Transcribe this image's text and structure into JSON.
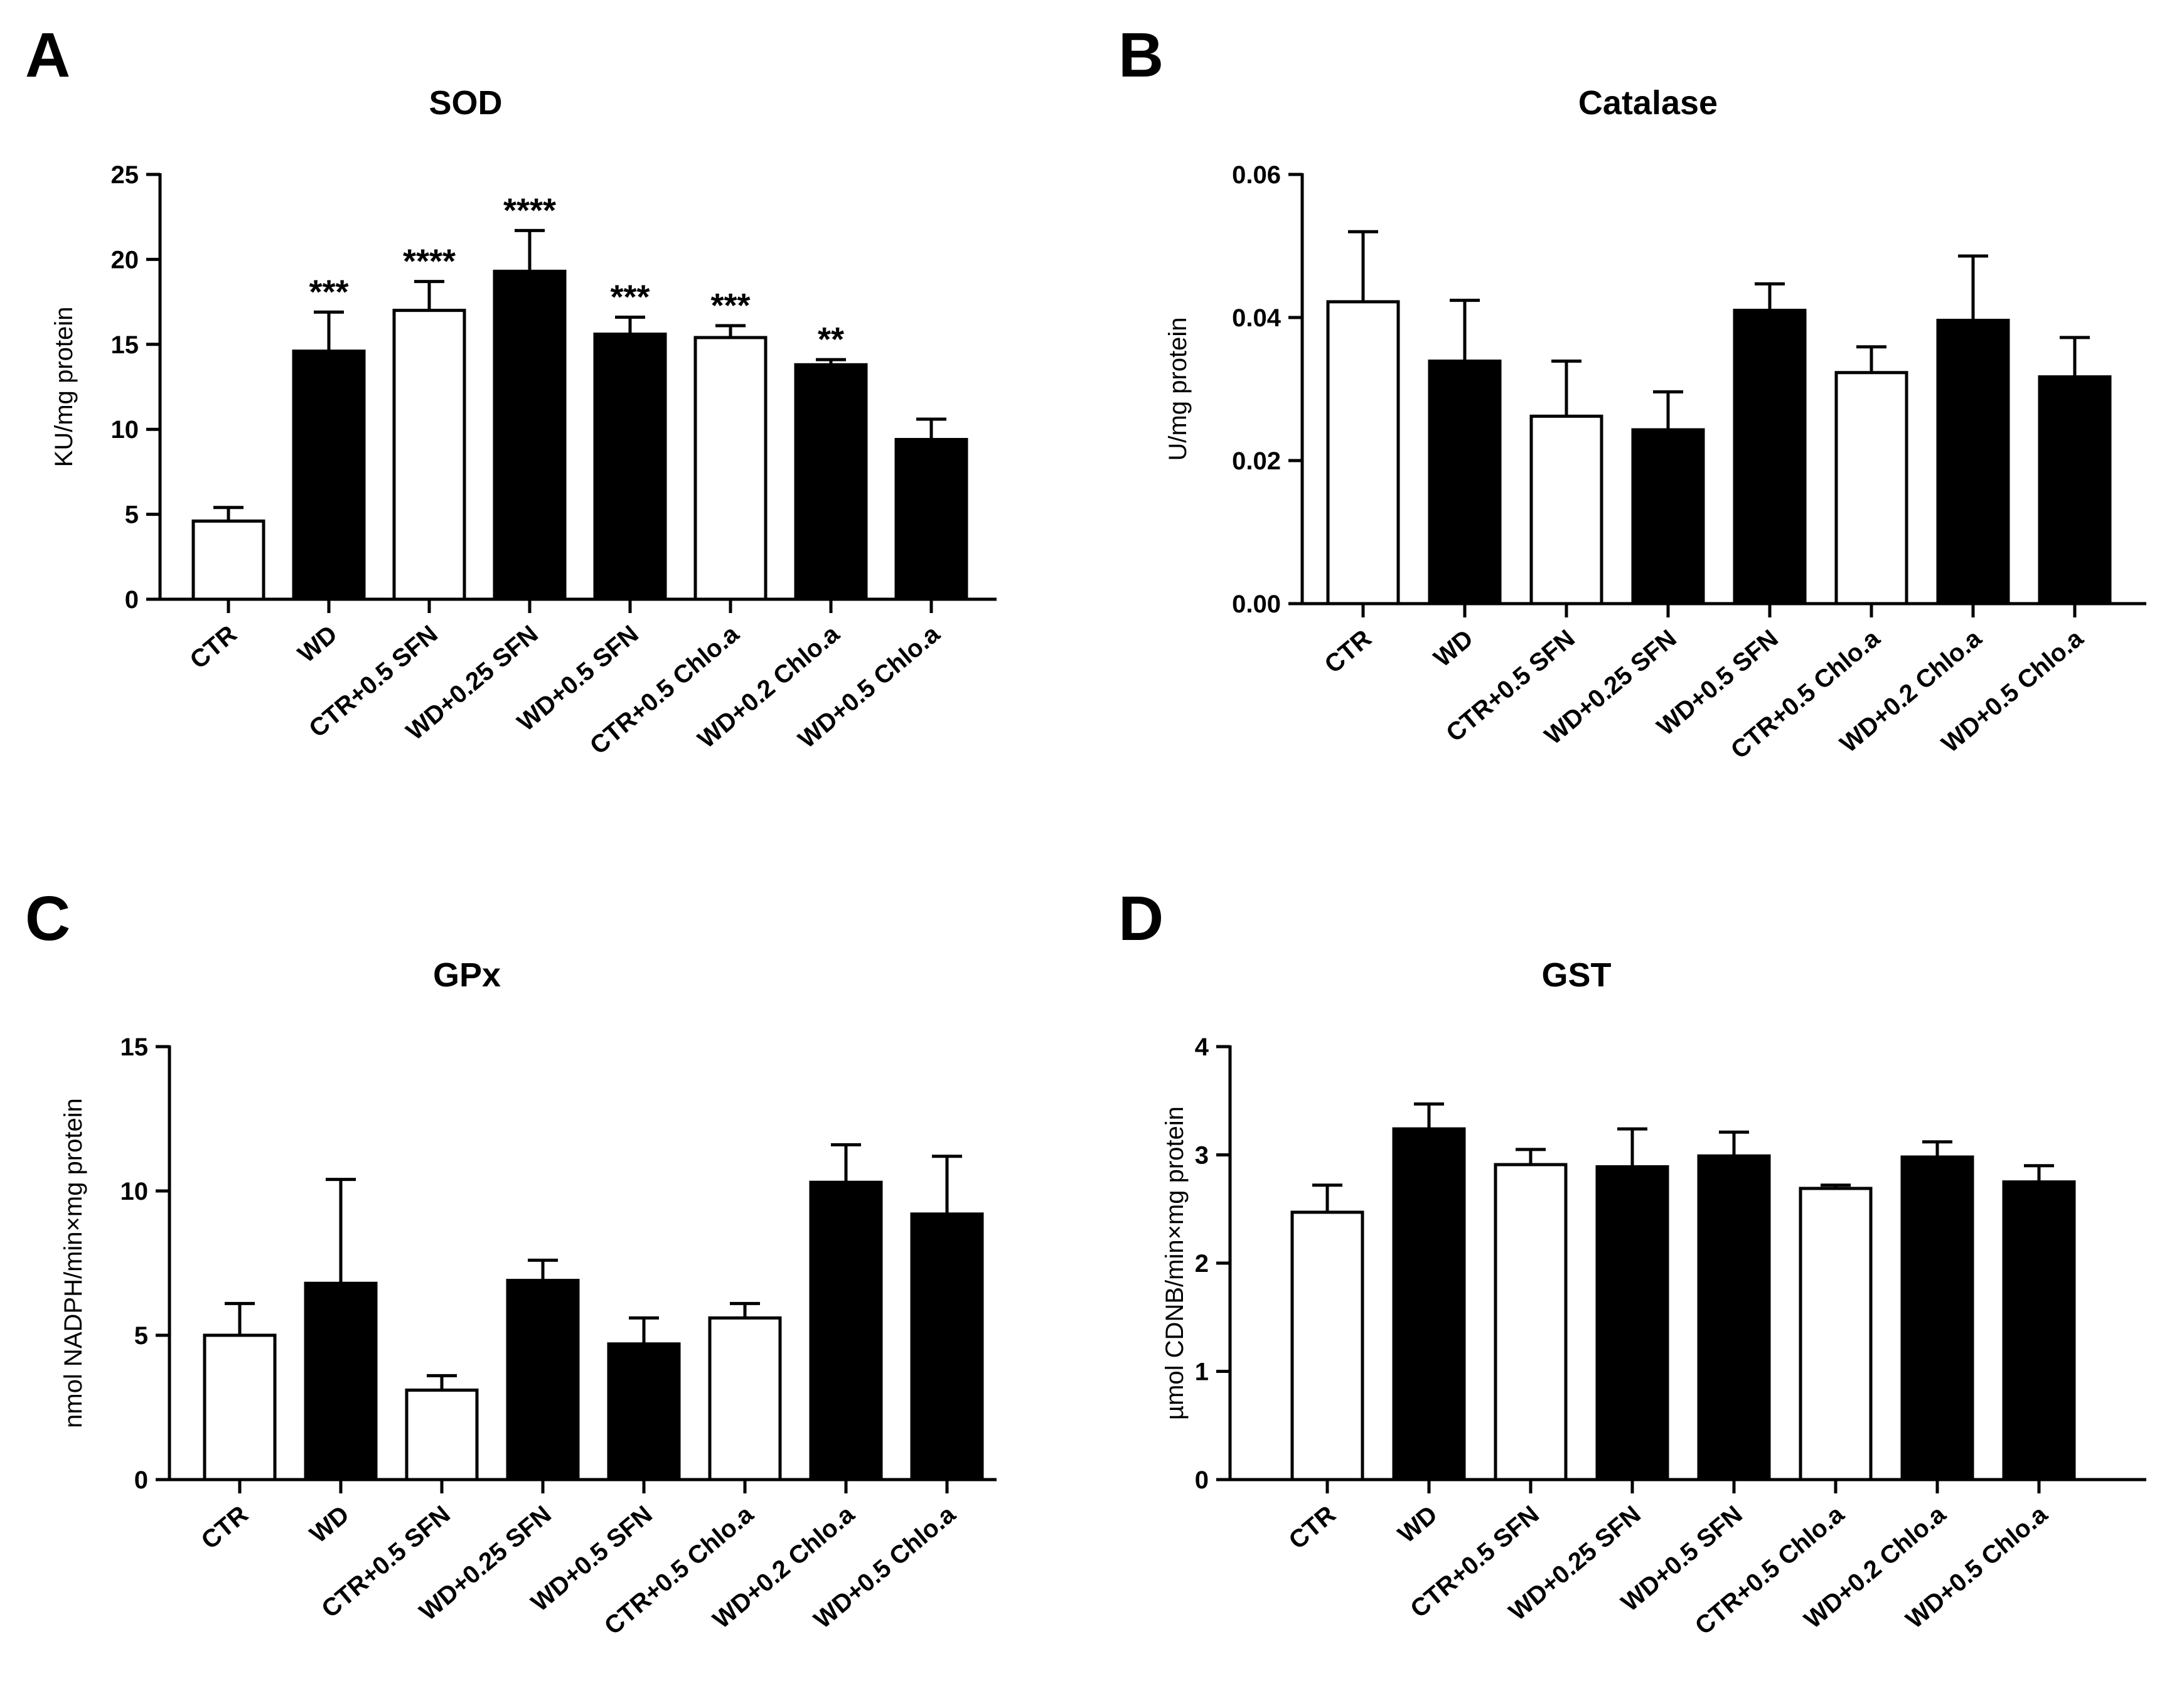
{
  "chart_data": [
    {
      "panel": "A",
      "type": "bar",
      "title": "SOD",
      "xlabel": "",
      "ylabel": "KU/mg protein",
      "ylim": [
        0,
        25
      ],
      "yticks": [
        "0",
        "5",
        "10",
        "15",
        "20",
        "25"
      ],
      "categories": [
        "CTR",
        "WD",
        "CTR+0.5 SFN",
        "WD+0.25 SFN",
        "WD+0.5 SFN",
        "CTR+0.5 Chlo.a",
        "WD+0.2 Chlo.a",
        "WD+0.5 Chlo.a"
      ],
      "values": [
        4.6,
        14.6,
        17.0,
        19.3,
        15.6,
        15.4,
        13.8,
        9.4
      ],
      "errors": [
        0.8,
        2.3,
        1.7,
        2.4,
        1.0,
        0.7,
        0.3,
        1.2
      ],
      "fills": [
        "white",
        "black",
        "white",
        "black",
        "black",
        "white",
        "black",
        "black"
      ],
      "annotations": [
        "",
        "***",
        "****",
        "****",
        "***",
        "***",
        "**",
        ""
      ]
    },
    {
      "panel": "B",
      "type": "bar",
      "title": "Catalase",
      "xlabel": "",
      "ylabel": "U/mg protein",
      "ylim": [
        0,
        0.06
      ],
      "yticks": [
        "0.00",
        "0.02",
        "0.04",
        "0.06"
      ],
      "categories": [
        "CTR",
        "WD",
        "CTR+0.5 SFN",
        "WD+0.25 SFN",
        "WD+0.5 SFN",
        "CTR+0.5 Chlo.a",
        "WD+0.2 Chlo.a",
        "WD+0.5 Chlo.a"
      ],
      "values": [
        0.0422,
        0.0339,
        0.0262,
        0.0243,
        0.041,
        0.0323,
        0.0396,
        0.0317
      ],
      "errors": [
        0.0098,
        0.0085,
        0.0077,
        0.0053,
        0.0037,
        0.0036,
        0.009,
        0.0055
      ],
      "fills": [
        "white",
        "black",
        "white",
        "black",
        "black",
        "white",
        "black",
        "black"
      ],
      "annotations": [
        "",
        "",
        "",
        "",
        "",
        "",
        "",
        ""
      ]
    },
    {
      "panel": "C",
      "type": "bar",
      "title": "GPx",
      "xlabel": "",
      "ylabel": "nmol NADPH/min×mg protein",
      "ylim": [
        0,
        15
      ],
      "yticks": [
        "0",
        "5",
        "10",
        "15"
      ],
      "categories": [
        "CTR",
        "WD",
        "CTR+0.5 SFN",
        "WD+0.25 SFN",
        "WD+0.5 SFN",
        "CTR+0.5 Chlo.a",
        "WD+0.2 Chlo.a",
        "WD+0.5 Chlo.a"
      ],
      "values": [
        5.0,
        6.8,
        3.1,
        6.9,
        4.7,
        5.6,
        10.3,
        9.2
      ],
      "errors": [
        1.1,
        3.6,
        0.5,
        0.7,
        0.9,
        0.5,
        1.3,
        2.0
      ],
      "fills": [
        "white",
        "black",
        "white",
        "black",
        "black",
        "white",
        "black",
        "black"
      ],
      "annotations": [
        "",
        "",
        "",
        "",
        "",
        "",
        "",
        ""
      ]
    },
    {
      "panel": "D",
      "type": "bar",
      "title": "GST",
      "xlabel": "",
      "ylabel": "µmol CDNB/min×mg protein",
      "ylim": [
        0,
        4
      ],
      "yticks": [
        "0",
        "1",
        "2",
        "3",
        "4"
      ],
      "categories": [
        "CTR",
        "WD",
        "CTR+0.5 SFN",
        "WD+0.25 SFN",
        "WD+0.5 SFN",
        "CTR+0.5 Chlo.a",
        "WD+0.2 Chlo.a",
        "WD+0.5 Chlo.a"
      ],
      "values": [
        2.47,
        3.24,
        2.91,
        2.89,
        2.99,
        2.69,
        2.98,
        2.75
      ],
      "errors": [
        0.25,
        0.23,
        0.14,
        0.35,
        0.22,
        0.03,
        0.14,
        0.15
      ],
      "fills": [
        "white",
        "black",
        "white",
        "black",
        "black",
        "white",
        "black",
        "black"
      ],
      "annotations": [
        "",
        "",
        "",
        "",
        "",
        "",
        "",
        ""
      ]
    }
  ]
}
